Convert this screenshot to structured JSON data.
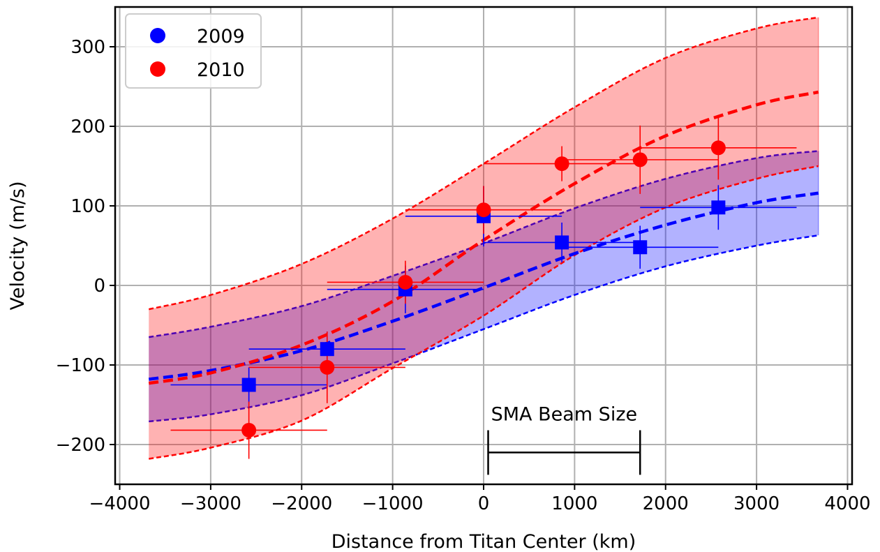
{
  "chart_data": {
    "type": "scatter",
    "xlabel": "Distance from Titan Center (km)",
    "ylabel": "Velocity (m/s)",
    "xlim": [
      -4050,
      4050
    ],
    "ylim": [
      -250,
      350
    ],
    "xticks": [
      -4000,
      -3000,
      -2000,
      -1000,
      0,
      1000,
      2000,
      3000,
      4000
    ],
    "xtick_labels": [
      "−4000",
      "−3000",
      "−2000",
      "−1000",
      "0",
      "1000",
      "2000",
      "3000",
      "4000"
    ],
    "yticks": [
      -200,
      -100,
      0,
      100,
      200,
      300
    ],
    "ytick_labels": [
      "−200",
      "−100",
      "0",
      "100",
      "200",
      "300"
    ],
    "grid": true,
    "legend_position": "top-left",
    "series": [
      {
        "name": "2009",
        "color": "#0000ff",
        "fill_color": "#0000ff",
        "fill_opacity": 0.3,
        "legend_marker": "circle",
        "data_marker": "square",
        "points": [
          {
            "x": -2580,
            "y": -125,
            "xerr": 860,
            "yerr": 22
          },
          {
            "x": -1720,
            "y": -80,
            "xerr": 860,
            "yerr": 22
          },
          {
            "x": -860,
            "y": -5,
            "xerr": 860,
            "yerr": 30
          },
          {
            "x": 0,
            "y": 87,
            "xerr": 860,
            "yerr": 38
          },
          {
            "x": 860,
            "y": 54,
            "xerr": 860,
            "yerr": 25
          },
          {
            "x": 1720,
            "y": 48,
            "xerr": 860,
            "yerr": 27
          },
          {
            "x": 2580,
            "y": 98,
            "xerr": 860,
            "yerr": 28
          }
        ],
        "model": {
          "x": [
            -3680,
            -3000,
            -2000,
            -1000,
            0,
            1000,
            2000,
            3000,
            3680
          ],
          "y": [
            -118,
            -107,
            -82,
            -45,
            -3,
            40,
            76,
            104,
            116
          ]
        },
        "band_upper": {
          "x": [
            -3680,
            -3000,
            -2000,
            -1000,
            0,
            1000,
            2000,
            3000,
            3680
          ],
          "y": [
            -65,
            -52,
            -26,
            12,
            53,
            97,
            134,
            160,
            169
          ]
        },
        "band_lower": {
          "x": [
            -3680,
            -3000,
            -2000,
            -1000,
            0,
            1000,
            2000,
            3000,
            3680
          ],
          "y": [
            -171,
            -162,
            -138,
            -98,
            -55,
            -12,
            24,
            50,
            63
          ]
        }
      },
      {
        "name": "2010",
        "color": "#ff0000",
        "fill_color": "#ff0000",
        "fill_opacity": 0.3,
        "legend_marker": "circle",
        "data_marker": "circle",
        "points": [
          {
            "x": -2580,
            "y": -182,
            "xerr": 860,
            "yerr": 36
          },
          {
            "x": -1720,
            "y": -103,
            "xerr": 860,
            "yerr": 45
          },
          {
            "x": -860,
            "y": 4,
            "xerr": 860,
            "yerr": 27
          },
          {
            "x": 0,
            "y": 95,
            "xerr": 860,
            "yerr": 30
          },
          {
            "x": 860,
            "y": 153,
            "xerr": 860,
            "yerr": 22
          },
          {
            "x": 1720,
            "y": 158,
            "xerr": 860,
            "yerr": 43
          },
          {
            "x": 2580,
            "y": 173,
            "xerr": 860,
            "yerr": 40
          }
        ],
        "model": {
          "x": [
            -3680,
            -3000,
            -2000,
            -1000,
            0,
            1000,
            2000,
            3000,
            3680
          ],
          "y": [
            -123,
            -110,
            -75,
            -20,
            57,
            128,
            188,
            227,
            243
          ]
        },
        "band_upper": {
          "x": [
            -3680,
            -3000,
            -2000,
            -1000,
            0,
            1000,
            2000,
            3000,
            3680
          ],
          "y": [
            -30,
            -12,
            27,
            84,
            153,
            224,
            286,
            323,
            337
          ]
        },
        "band_lower": {
          "x": [
            -3680,
            -3000,
            -2000,
            -1000,
            0,
            1000,
            2000,
            3000,
            3680
          ],
          "y": [
            -218,
            -204,
            -170,
            -104,
            -38,
            38,
            98,
            134,
            150
          ]
        }
      }
    ],
    "annotation": {
      "text": "SMA Beam Size",
      "x_start": 50,
      "x_end": 1720,
      "y": -210,
      "cap_half_height": 28
    }
  }
}
